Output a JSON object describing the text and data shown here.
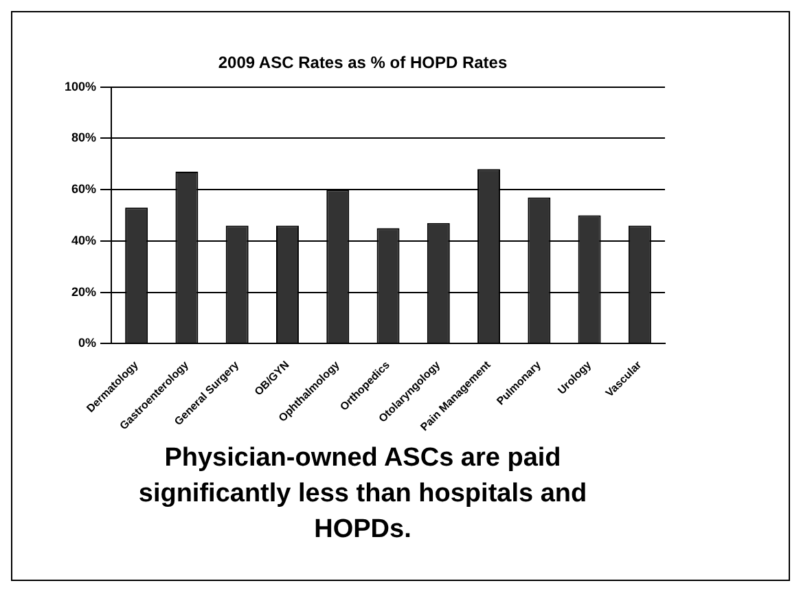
{
  "chart_data": {
    "type": "bar",
    "title": "2009 ASC Rates as % of HOPD Rates",
    "categories": [
      "Dermatology",
      "Gastroenterology",
      "General Surgery",
      "OB/GYN",
      "Ophthalmology",
      "Orthopedics",
      "Otolaryngology",
      "Pain Management",
      "Pulmonary",
      "Urology",
      "Vascular"
    ],
    "values": [
      53,
      67,
      46,
      46,
      60,
      45,
      47,
      68,
      57,
      50,
      46
    ],
    "color": "#333333",
    "ylim": [
      0,
      100
    ],
    "yticks": [
      {
        "value": 0,
        "label": "0%"
      },
      {
        "value": 20,
        "label": "20%"
      },
      {
        "value": 40,
        "label": "40%"
      },
      {
        "value": 60,
        "label": "60%"
      },
      {
        "value": 80,
        "label": "80%"
      },
      {
        "value": 100,
        "label": "100%"
      }
    ],
    "grid": "y",
    "legend": false,
    "annotations": [
      "Physician-owned ASCs are paid significantly less than hospitals and HOPDs."
    ]
  }
}
